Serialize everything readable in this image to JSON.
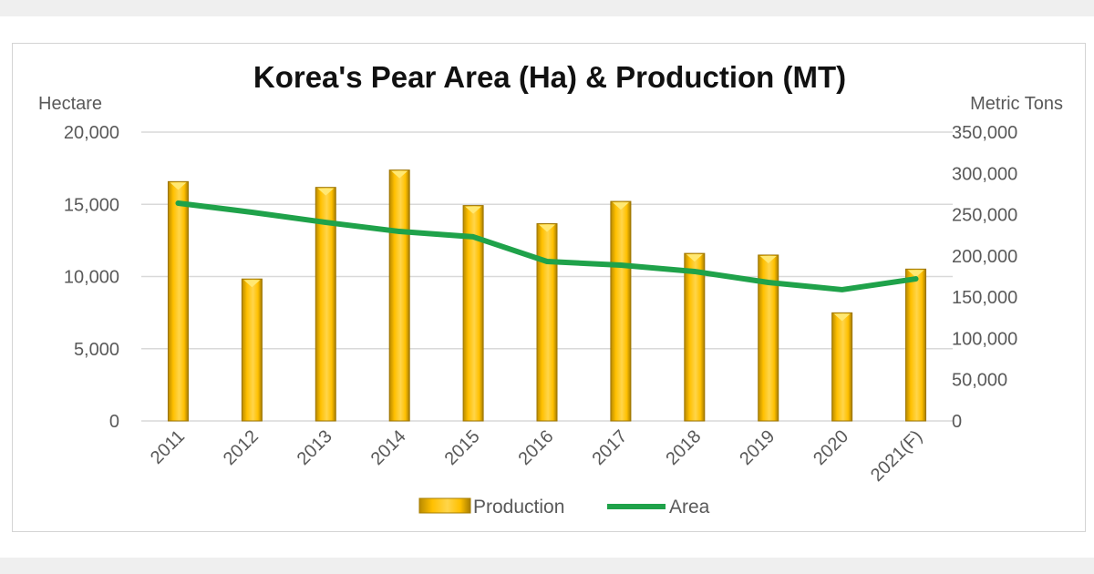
{
  "chart_data": {
    "type": "bar+line",
    "title": "Korea's Pear Area (Ha) & Production (MT)",
    "categories": [
      "2011",
      "2012",
      "2013",
      "2014",
      "2015",
      "2016",
      "2017",
      "2018",
      "2019",
      "2020",
      "2021(F)"
    ],
    "y_left": {
      "label": "Hectare",
      "range": [
        0,
        20000
      ],
      "ticks": [
        "0",
        "5,000",
        "10,000",
        "15,000",
        "20,000"
      ],
      "tick_values": [
        0,
        5000,
        10000,
        15000,
        20000
      ]
    },
    "y_right": {
      "label": "Metric Tons",
      "range": [
        0,
        350000
      ],
      "ticks": [
        "0",
        "50,000",
        "100,000",
        "150,000",
        "200,000",
        "250,000",
        "300,000",
        "350,000"
      ],
      "tick_values": [
        0,
        50000,
        100000,
        150000,
        200000,
        250000,
        300000,
        350000
      ]
    },
    "series": [
      {
        "name": "Production",
        "type": "bar",
        "axis": "right",
        "color": "#FFC000",
        "values": [
          290000,
          172000,
          283000,
          304000,
          261000,
          239000,
          266000,
          203000,
          201000,
          131000,
          184000
        ]
      },
      {
        "name": "Area",
        "type": "line",
        "axis": "left",
        "color": "#1FA24A",
        "values": [
          15080,
          14450,
          13750,
          13120,
          12750,
          11040,
          10790,
          10350,
          9590,
          9090,
          9840
        ]
      }
    ],
    "grid": true,
    "legend": "bottom"
  }
}
